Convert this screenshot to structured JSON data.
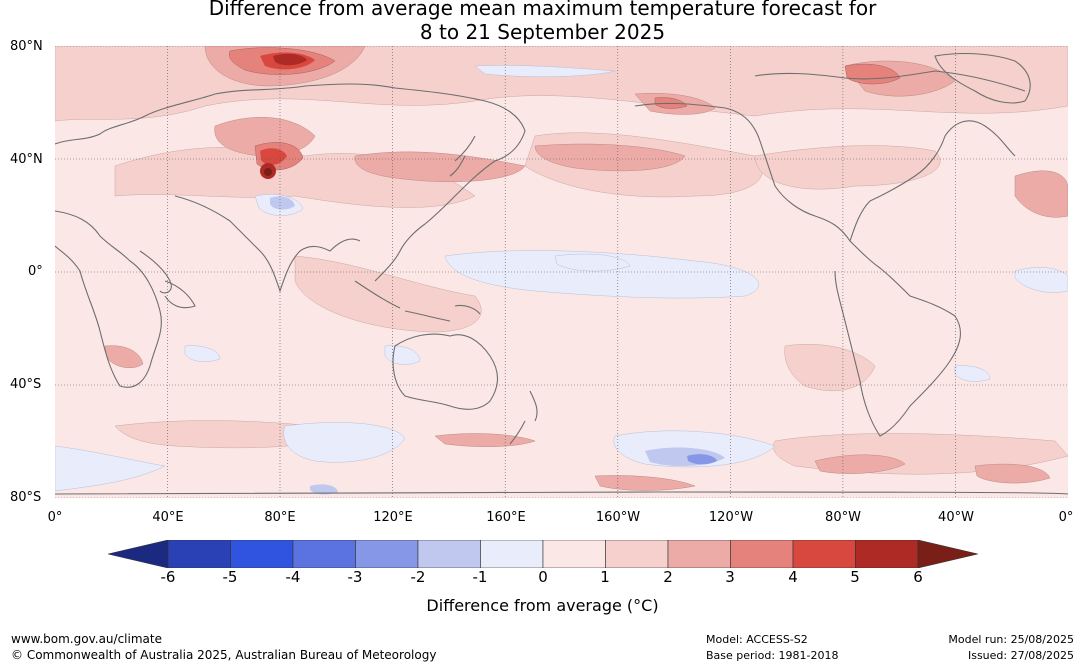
{
  "title": {
    "line1": "Difference from average mean maximum temperature forecast for",
    "line2": "8 to 21 September 2025"
  },
  "map": {
    "lat_labels": [
      "80°N",
      "40°N",
      "0°",
      "40°S",
      "80°S"
    ],
    "lon_labels": [
      "0°",
      "40°E",
      "80°E",
      "120°E",
      "160°E",
      "160°W",
      "120°W",
      "80°W",
      "40°W",
      "0°"
    ],
    "palette": {
      "neg6": "#1b2a80",
      "neg5": "#2a41b5",
      "neg4": "#3154e0",
      "neg3": "#5a73e0",
      "neg2": "#8797e8",
      "neg1": "#c0c8f0",
      "zero": "#e9ecfa",
      "pos0": "#fbe8e6",
      "pos1": "#f5d0cd",
      "pos2": "#ecaba6",
      "pos3": "#e5827c",
      "pos4": "#d8483f",
      "pos5": "#ad2b24",
      "pos6": "#7a1e18",
      "coast": "#6e6e6e"
    }
  },
  "colorbar": {
    "ticks": [
      "-6",
      "-5",
      "-4",
      "-3",
      "-2",
      "-1",
      "0",
      "1",
      "2",
      "3",
      "4",
      "5",
      "6"
    ],
    "label": "Difference from average (°C)"
  },
  "footer": {
    "website": "www.bom.gov.au/climate",
    "copyright": "© Commonwealth of Australia 2025, Australian Bureau of Meteorology",
    "model": "Model: ACCESS-S2",
    "base_period": "Base period: 1981-2018",
    "model_run": "Model run: 25/08/2025",
    "issued": "Issued: 27/08/2025"
  }
}
